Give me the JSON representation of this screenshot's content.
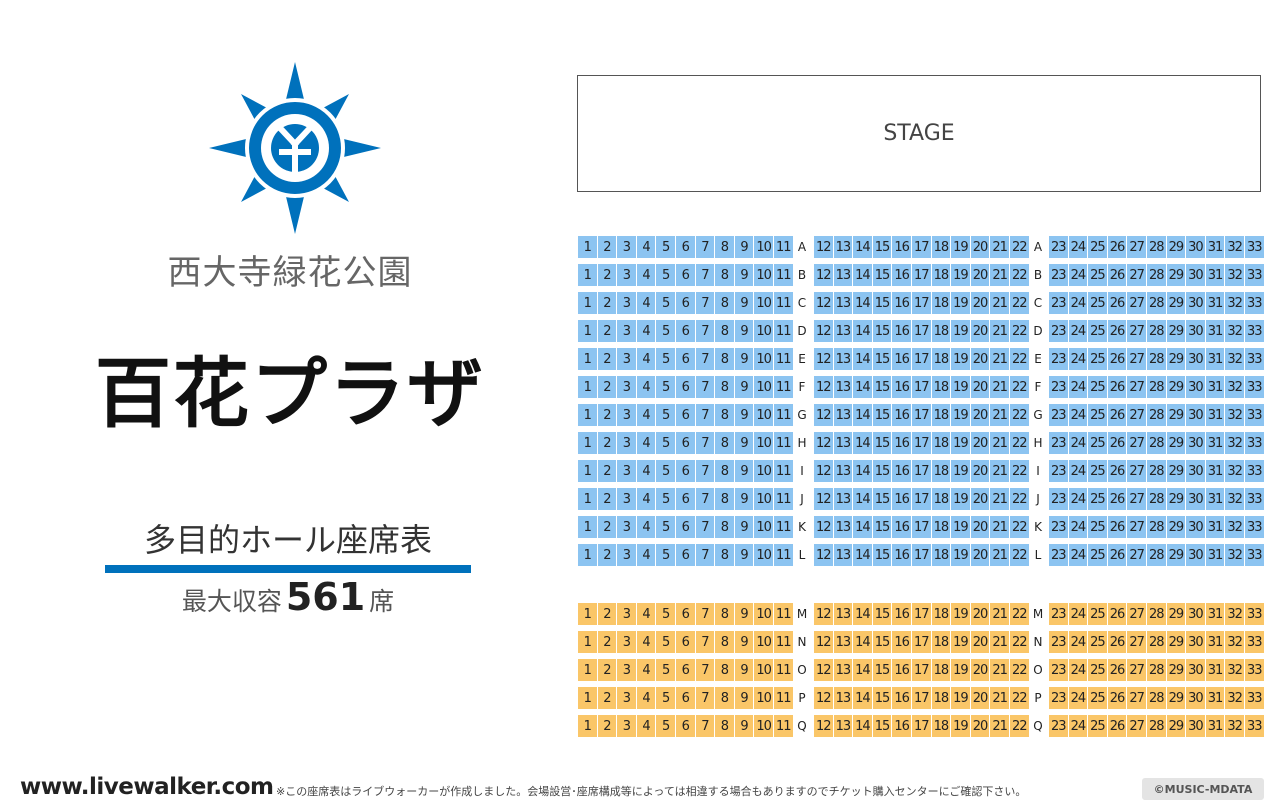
{
  "colors": {
    "accent": "#0071bc",
    "upper_seat": "#8cc4f1",
    "lower_seat": "#fac668"
  },
  "emblem": {
    "icon": "city-emblem-icon"
  },
  "park_name": "西大寺緑花公園",
  "venue_name": "百花プラザ",
  "chart_title": "多目的ホール座席表",
  "capacity": {
    "label": "最大収容",
    "number": "561",
    "unit": "席"
  },
  "stage_label": "STAGE",
  "seating": {
    "seat_numbers": [
      "1",
      "2",
      "3",
      "4",
      "5",
      "6",
      "7",
      "8",
      "9",
      "10",
      "11",
      "12",
      "13",
      "14",
      "15",
      "16",
      "17",
      "18",
      "19",
      "20",
      "21",
      "22",
      "23",
      "24",
      "25",
      "26",
      "27",
      "28",
      "29",
      "30",
      "31",
      "32",
      "33"
    ],
    "upper_rows": [
      "A",
      "B",
      "C",
      "D",
      "E",
      "F",
      "G",
      "H",
      "I",
      "J",
      "K",
      "L"
    ],
    "lower_rows": [
      "M",
      "N",
      "O",
      "P",
      "Q"
    ]
  },
  "footer": {
    "site": "www.livewalker.com",
    "disclaimer": "※この座席表はライブウォーカーが作成しました。会場設営･座席構成等によっては相違する場合もありますのでチケット購入センターにご確認下さい。",
    "copyright": "©MUSIC-MDATA"
  }
}
